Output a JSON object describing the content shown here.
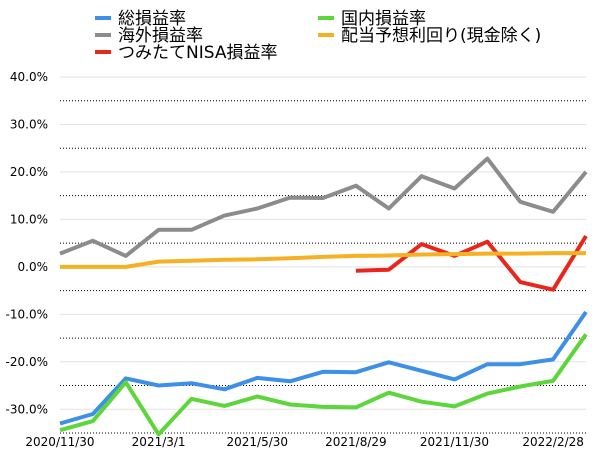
{
  "chart_data": {
    "type": "line",
    "title": "",
    "xlabel": "",
    "ylabel": "",
    "ylim": [
      -35,
      40
    ],
    "grid": "dotted horizontal",
    "legend": "top",
    "y_ticks": [
      "40.0%",
      "30.0%",
      "20.0%",
      "10.0%",
      "0.0%",
      "-10.0%",
      "-20.0%",
      "-30.0%"
    ],
    "y_tick_values": [
      40,
      30,
      20,
      10,
      0,
      -10,
      -20,
      -30
    ],
    "x_tick_labels": [
      "2020/11/30",
      "2021/3/1",
      "2021/5/30",
      "2021/8/29",
      "2021/11/30",
      "2022/2/28"
    ],
    "x_tick_indices": [
      0,
      3,
      6,
      9,
      12,
      15
    ],
    "x_count": 17,
    "series": [
      {
        "name": "総損益率",
        "color": "#3d8fe8",
        "values": [
          -33,
          -31,
          -23.5,
          -25,
          -24.5,
          -25.8,
          -23.4,
          -24.1,
          -22.1,
          -22.2,
          -20.1,
          -21.9,
          -23.7,
          -20.5,
          -20.5,
          -19.5,
          -9.5
        ]
      },
      {
        "name": "海外損益率",
        "color": "#8c8c8c",
        "values": [
          2.8,
          5.5,
          2.3,
          7.8,
          7.8,
          10.8,
          12.3,
          14.6,
          14.5,
          17.1,
          12.3,
          19.1,
          16.5,
          22.8,
          13.7,
          11.6,
          20
        ]
      },
      {
        "name": "つみたてNISA損益率",
        "color": "#e8261c",
        "values": [
          null,
          null,
          null,
          null,
          null,
          null,
          null,
          null,
          null,
          -0.8,
          -0.6,
          4.8,
          2.3,
          5.3,
          -3.2,
          -4.8,
          6.5
        ]
      },
      {
        "name": "国内損益率",
        "color": "#5cd63a",
        "values": [
          -34.4,
          -32.5,
          -24.3,
          -35.3,
          -27.8,
          -29.3,
          -27.3,
          -29.0,
          -29.5,
          -29.6,
          -26.5,
          -28.4,
          -29.4,
          -26.7,
          -25.2,
          -24.0,
          -14.2
        ]
      },
      {
        "name": "配当予想利回り(現金除く)",
        "color": "#f5b023",
        "values": [
          0,
          0,
          0,
          1.1,
          1.3,
          1.5,
          1.6,
          1.8,
          2.1,
          2.3,
          2.4,
          2.6,
          2.7,
          2.8,
          2.8,
          2.9,
          2.9
        ]
      }
    ]
  }
}
